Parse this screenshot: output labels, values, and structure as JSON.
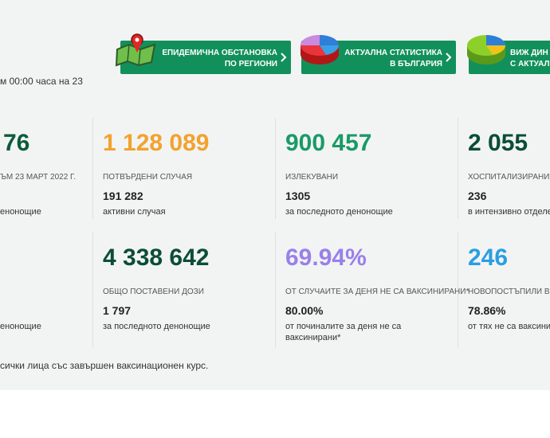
{
  "header": {
    "notice": "м 00:00 часа на 23"
  },
  "nav_buttons": [
    {
      "lines": [
        "ЕПИДЕМИЧНА ОБСТАНОВКА",
        "ПО РЕГИОНИ"
      ]
    },
    {
      "lines": [
        "АКТУАЛНА СТАТИСТИКА",
        "В БЪЛГАРИЯ"
      ]
    },
    {
      "lines": [
        "ВИЖ ДИН",
        "С АКТУАЛ"
      ]
    }
  ],
  "stats": {
    "rows": [
      [
        {
          "value": "76",
          "label": "ЪМ 23 МАРТ 2022 Г.",
          "sub_label": "енонощие"
        },
        {
          "value": "1 128 089",
          "label": "ПОТВЪРДЕНИ СЛУЧАЯ",
          "sub_value": "191 282",
          "sub_label": "активни случая"
        },
        {
          "value": "900 457",
          "label": "ИЗЛЕКУВАНИ",
          "sub_value": "1305",
          "sub_label": "за последното денонощие"
        },
        {
          "value": "2 055",
          "label": "ХОСПИТАЛИЗИРАНИ",
          "sub_value": "236",
          "sub_label": "в интензивно отделе"
        }
      ],
      [
        {
          "sub_label": "енонощие"
        },
        {
          "value": "4 338 642",
          "label": "ОБЩО ПОСТАВЕНИ ДОЗИ",
          "sub_value": "1 797",
          "sub_label": "за последното денонощие"
        },
        {
          "value": "69.94%",
          "label": "ОТ СЛУЧАИТЕ ЗА ДЕНЯ НЕ СА ВАКСИНИРАНИ*",
          "sub_value": "80.00%",
          "sub_label": "от починалите за деня не са ваксинирани*"
        },
        {
          "value": "246",
          "label": "НОВОПОСТЪПИЛИ В БО",
          "sub_value": "78.86%",
          "sub_label": "от тях не са ваксини"
        }
      ]
    ]
  },
  "footnote": "сички лица със завършен ваксинационен курс."
}
